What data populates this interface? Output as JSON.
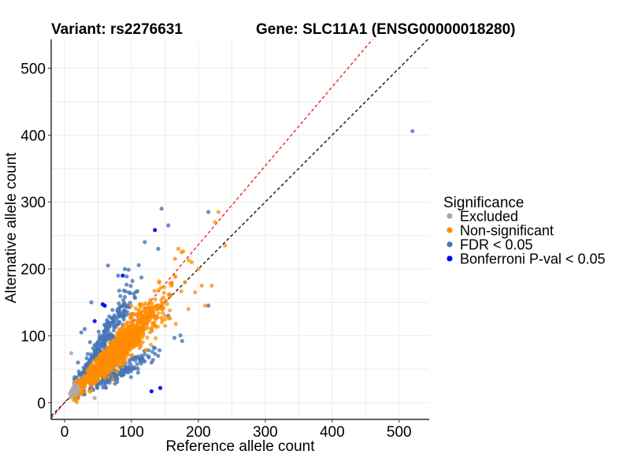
{
  "chart_data": {
    "type": "scatter",
    "title_left": "Variant: rs2276631",
    "title_right": "Gene: SLC11A1 (ENSG00000018280)",
    "xlabel": "Reference allele count",
    "ylabel": "Alternative allele count",
    "xlim": [
      -20,
      545
    ],
    "ylim": [
      -25,
      543
    ],
    "x_ticks": [
      0,
      100,
      200,
      300,
      400,
      500
    ],
    "y_ticks": [
      0,
      100,
      200,
      300,
      400,
      500
    ],
    "grid": true,
    "reference_lines": [
      {
        "name": "identity",
        "slope": 1.0,
        "intercept": 0,
        "color": "#000000",
        "style": "dashed"
      },
      {
        "name": "expected-ratio",
        "slope": 1.18,
        "intercept": 0,
        "color": "#e41a1c",
        "style": "dashed"
      }
    ],
    "legend": {
      "title": "Significance",
      "position": "right",
      "entries": [
        {
          "label": "Excluded",
          "color": "#aaaaaa"
        },
        {
          "label": "Non-significant",
          "color": "#ff8c00"
        },
        {
          "label": "FDR < 0.05",
          "color": "#4575b4"
        },
        {
          "label": "Bonferroni P-val < 0.05",
          "color": "#0000ee"
        }
      ]
    },
    "series": [
      {
        "name": "Excluded",
        "color": "#aaaaaa",
        "x": [
          8,
          10,
          12,
          12,
          14,
          15,
          16,
          18,
          9,
          11,
          13,
          17,
          20,
          22,
          14,
          19,
          45,
          10
        ],
        "y": [
          14,
          18,
          10,
          20,
          15,
          25,
          12,
          22,
          8,
          16,
          22,
          18,
          24,
          20,
          30,
          14,
          7,
          74
        ]
      },
      {
        "name": "Non-significant",
        "color": "#ff8c00",
        "points_generated": 1300,
        "x_center": 75,
        "x_spread": 35,
        "ratio_center": 1.0,
        "ratio_spread": 0.22,
        "outliers": [
          [
            180,
            180
          ],
          [
            195,
            165
          ],
          [
            205,
            175
          ],
          [
            210,
            145
          ],
          [
            220,
            175
          ],
          [
            230,
            285
          ],
          [
            240,
            235
          ],
          [
            190,
            210
          ],
          [
            165,
            215
          ],
          [
            170,
            230
          ],
          [
            175,
            225
          ],
          [
            200,
            200
          ],
          [
            160,
            175
          ],
          [
            150,
            130
          ],
          [
            185,
            140
          ],
          [
            225,
            270
          ]
        ]
      },
      {
        "name": "FDR < 0.05",
        "color": "#4575b4",
        "points_generated_high": 260,
        "points_generated_low": 160,
        "outliers": [
          [
            520,
            406
          ],
          [
            215,
            145
          ],
          [
            215,
            285
          ],
          [
            140,
            230
          ],
          [
            65,
            205
          ],
          [
            90,
            200
          ],
          [
            80,
            190
          ],
          [
            60,
            145
          ],
          [
            40,
            150
          ],
          [
            120,
            240
          ],
          [
            155,
            265
          ],
          [
            145,
            290
          ],
          [
            30,
            110
          ],
          [
            25,
            105
          ],
          [
            20,
            60
          ],
          [
            110,
            45
          ],
          [
            100,
            50
          ],
          [
            130,
            60
          ],
          [
            140,
            70
          ],
          [
            155,
            130
          ]
        ]
      },
      {
        "name": "Bonferroni P-val < 0.05",
        "color": "#0000ee",
        "x": [
          135,
          87,
          57,
          60,
          45,
          130,
          143
        ],
        "y": [
          258,
          190,
          147,
          145,
          122,
          17,
          22
        ]
      }
    ]
  }
}
